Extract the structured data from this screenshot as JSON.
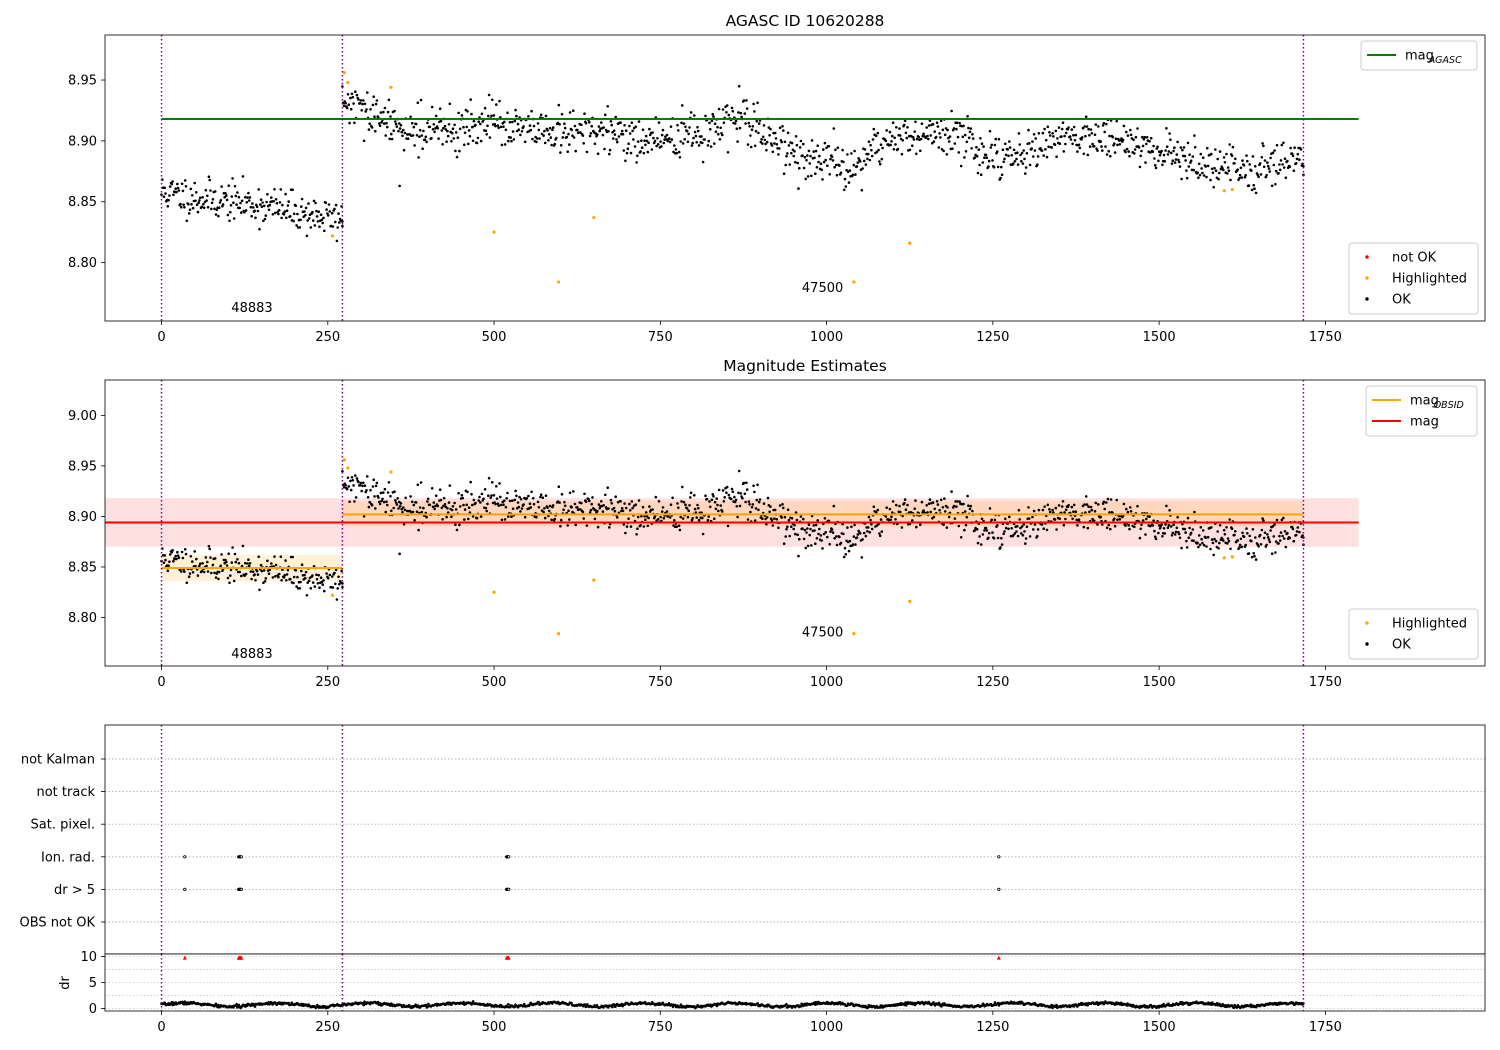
{
  "chart_data": [
    {
      "type": "scatter",
      "title": "AGASC ID 10620288",
      "xlim": [
        -85,
        1990
      ],
      "ylim": [
        8.752,
        8.987
      ],
      "xticks": [
        0,
        250,
        500,
        750,
        1000,
        1250,
        1500,
        1750
      ],
      "yticks": [
        8.8,
        8.85,
        8.9,
        8.95
      ],
      "ytick_labels": [
        "8.80",
        "8.85",
        "8.90",
        "8.95"
      ],
      "obs_boundaries": [
        0,
        272,
        1717
      ],
      "obs_labels": [
        {
          "text": "48883",
          "x": 136,
          "y": 8.7625
        },
        {
          "text": "47500",
          "x": 994,
          "y": 8.779
        }
      ],
      "ref_lines": [
        {
          "name": "mag_AGASC",
          "y": 8.918,
          "x": [
            0,
            1800
          ],
          "color": "#008000"
        }
      ],
      "series": [
        {
          "name": "OK",
          "color": "#000000",
          "segments": [
            {
              "x": [
                0,
                272
              ],
              "trend": [
                8.858,
                8.853,
                8.85,
                8.846,
                8.84,
                8.835
              ],
              "noise": 0.008,
              "n": 230,
              "seed": 11
            },
            {
              "x": [
                272,
                1717
              ],
              "trend": [
                8.932,
                8.912,
                8.908,
                8.915,
                8.905,
                8.908,
                8.9,
                8.905,
                8.918,
                8.888,
                8.876,
                8.905,
                8.905,
                8.885,
                8.9,
                8.905,
                8.895,
                8.88,
                8.873,
                8.89
              ],
              "noise": 0.009,
              "n": 1200,
              "seed": 29
            }
          ],
          "extra_points": [
            [
              358,
              8.863
            ],
            [
              272,
              8.83
            ],
            [
              1717,
              8.872
            ]
          ]
        },
        {
          "name": "Highlighted",
          "color": "#FFA500",
          "points": [
            [
              275,
              8.956
            ],
            [
              280,
              8.948
            ],
            [
              345,
              8.944
            ],
            [
              257,
              8.822
            ],
            [
              500,
              8.825
            ],
            [
              597,
              8.784
            ],
            [
              650,
              8.837
            ],
            [
              1041,
              8.784
            ],
            [
              1125,
              8.816
            ],
            [
              1598,
              8.859
            ],
            [
              1610,
              8.86
            ]
          ]
        },
        {
          "name": "not OK",
          "color": "#FF0000",
          "points": []
        }
      ],
      "legend": [
        {
          "label": "mag",
          "sub": "AGASC",
          "kind": "line",
          "color": "#008000",
          "placement": "upper-right"
        },
        {
          "label": "not OK",
          "kind": "point",
          "color": "#FF0000",
          "placement": "lower-right"
        },
        {
          "label": "Highlighted",
          "kind": "point",
          "color": "#FFA500",
          "placement": "lower-right"
        },
        {
          "label": "OK",
          "kind": "point",
          "color": "#000000",
          "placement": "lower-right"
        }
      ]
    },
    {
      "type": "scatter",
      "title": "Magnitude Estimates",
      "xlim": [
        -85,
        1990
      ],
      "ylim": [
        8.752,
        9.035
      ],
      "xticks": [
        0,
        250,
        500,
        750,
        1000,
        1250,
        1500,
        1750
      ],
      "yticks": [
        8.8,
        8.85,
        8.9,
        8.95,
        9.0
      ],
      "ytick_labels": [
        "8.80",
        "8.85",
        "8.90",
        "8.95",
        "9.00"
      ],
      "obs_boundaries": [
        0,
        272,
        1717
      ],
      "obs_labels": [
        {
          "text": "48883",
          "x": 136,
          "y": 8.764
        },
        {
          "text": "47500",
          "x": 994,
          "y": 8.785
        }
      ],
      "bands": [
        {
          "x": [
            -85,
            1800
          ],
          "y": [
            8.87,
            8.918
          ],
          "color": "#FF0000",
          "opacity": 0.12
        },
        {
          "x": [
            0,
            272
          ],
          "y": [
            8.836,
            8.862
          ],
          "color": "#FFA500",
          "opacity": 0.15
        },
        {
          "x": [
            272,
            1717
          ],
          "y": [
            8.89,
            8.915
          ],
          "color": "#FFA500",
          "opacity": 0.15
        }
      ],
      "ref_lines": [
        {
          "name": "mag",
          "y": 8.894,
          "x": [
            -85,
            1800
          ],
          "color": "#FF0000"
        },
        {
          "name": "mag_OBSID",
          "y": 8.849,
          "x": [
            0,
            272
          ],
          "color": "#FFA500"
        },
        {
          "name": "mag_OBSID",
          "y": 8.902,
          "x": [
            272,
            1717
          ],
          "color": "#FFA500"
        }
      ],
      "series": [
        {
          "name": "OK",
          "color": "#000000",
          "segments": [
            {
              "x": [
                0,
                272
              ],
              "trend": [
                8.858,
                8.853,
                8.85,
                8.846,
                8.84,
                8.835
              ],
              "noise": 0.008,
              "n": 230,
              "seed": 11
            },
            {
              "x": [
                272,
                1717
              ],
              "trend": [
                8.932,
                8.912,
                8.908,
                8.915,
                8.905,
                8.908,
                8.9,
                8.905,
                8.918,
                8.888,
                8.876,
                8.905,
                8.905,
                8.885,
                8.9,
                8.905,
                8.895,
                8.88,
                8.873,
                8.89
              ],
              "noise": 0.009,
              "n": 1200,
              "seed": 29
            }
          ],
          "extra_points": [
            [
              358,
              8.863
            ],
            [
              272,
              8.83
            ],
            [
              1717,
              8.872
            ]
          ]
        },
        {
          "name": "Highlighted",
          "color": "#FFA500",
          "points": [
            [
              275,
              8.956
            ],
            [
              280,
              8.948
            ],
            [
              345,
              8.944
            ],
            [
              257,
              8.822
            ],
            [
              500,
              8.825
            ],
            [
              597,
              8.784
            ],
            [
              650,
              8.837
            ],
            [
              1041,
              8.784
            ],
            [
              1125,
              8.816
            ],
            [
              1598,
              8.859
            ],
            [
              1610,
              8.86
            ]
          ]
        }
      ],
      "legend": [
        {
          "label": "mag",
          "sub": "OBSID",
          "kind": "line",
          "color": "#FFA500",
          "placement": "upper-right"
        },
        {
          "label": "mag",
          "kind": "line",
          "color": "#FF0000",
          "placement": "upper-right"
        },
        {
          "label": "Highlighted",
          "kind": "point",
          "color": "#FFA500",
          "placement": "lower-right"
        },
        {
          "label": "OK",
          "kind": "point",
          "color": "#000000",
          "placement": "lower-right"
        }
      ]
    },
    {
      "type": "scatter",
      "title": "",
      "xlim": [
        -85,
        1990
      ],
      "categories": [
        "not Kalman",
        "not track",
        "Sat. pixel.",
        "Ion. rad.",
        "dr > 5",
        "OBS not OK"
      ],
      "obs_boundaries": [
        0,
        272,
        1717
      ],
      "flags": {
        "Ion. rad.": [
          35,
          116,
          117,
          118,
          119,
          120,
          519,
          520,
          521,
          522,
          1259
        ],
        "dr > 5": [
          35,
          116,
          117,
          118,
          119,
          120,
          519,
          520,
          521,
          522,
          1259
        ]
      }
    },
    {
      "type": "scatter",
      "title": "",
      "ylabel": "dr",
      "xlim": [
        -85,
        1990
      ],
      "ylim": [
        -0.5,
        10.5
      ],
      "yticks": [
        0,
        5,
        10
      ],
      "ytick_labels": [
        "0",
        "5",
        "10"
      ],
      "xticks": [
        0,
        250,
        500,
        750,
        1000,
        1250,
        1500,
        1750
      ],
      "obs_boundaries": [
        0,
        272,
        1717
      ],
      "series": [
        {
          "name": "dr",
          "color": "#000000",
          "base": 0.7,
          "noise": 0.35,
          "n": 1430,
          "x": [
            0,
            1717
          ],
          "seed": 7
        },
        {
          "name": "dr > 5 (clipped)",
          "color": "#FF0000",
          "y": 9.8,
          "points_x": [
            35,
            116,
            117,
            118,
            119,
            120,
            519,
            520,
            521,
            522,
            1259
          ]
        }
      ]
    }
  ]
}
